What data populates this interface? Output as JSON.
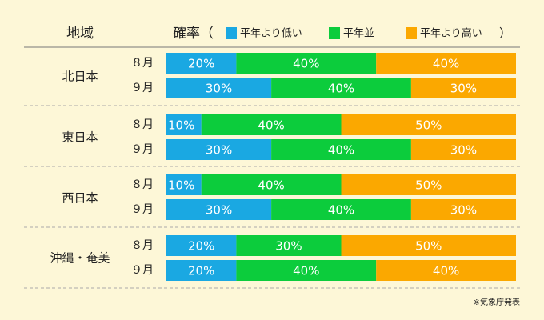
{
  "chart_data": {
    "type": "bar",
    "orientation": "horizontal",
    "stacked": true,
    "header": {
      "region_label": "地域",
      "prob_label": "確率（",
      "close_paren": "）"
    },
    "legend": [
      {
        "name": "平年より低い",
        "color": "#1aa8e2"
      },
      {
        "name": "平年並",
        "color": "#0ccc3c"
      },
      {
        "name": "平年より高い",
        "color": "#fba800"
      }
    ],
    "groups": [
      {
        "region": "北日本",
        "rows": [
          {
            "month": "８月",
            "values": [
              20,
              40,
              40
            ]
          },
          {
            "month": "９月",
            "values": [
              30,
              40,
              30
            ]
          }
        ]
      },
      {
        "region": "東日本",
        "rows": [
          {
            "month": "８月",
            "values": [
              10,
              40,
              50
            ]
          },
          {
            "month": "９月",
            "values": [
              30,
              40,
              30
            ]
          }
        ]
      },
      {
        "region": "西日本",
        "rows": [
          {
            "month": "８月",
            "values": [
              10,
              40,
              50
            ]
          },
          {
            "month": "９月",
            "values": [
              30,
              40,
              30
            ]
          }
        ]
      },
      {
        "region": "沖縄・奄美",
        "rows": [
          {
            "month": "８月",
            "values": [
              20,
              30,
              50
            ]
          },
          {
            "month": "９月",
            "values": [
              20,
              40,
              40
            ]
          }
        ]
      }
    ],
    "value_suffix": "%",
    "source_note": "※気象庁発表",
    "colors": {
      "background": "#fdf7d7",
      "divider": "#aaaaaa",
      "label_text": "#ffffff"
    }
  }
}
